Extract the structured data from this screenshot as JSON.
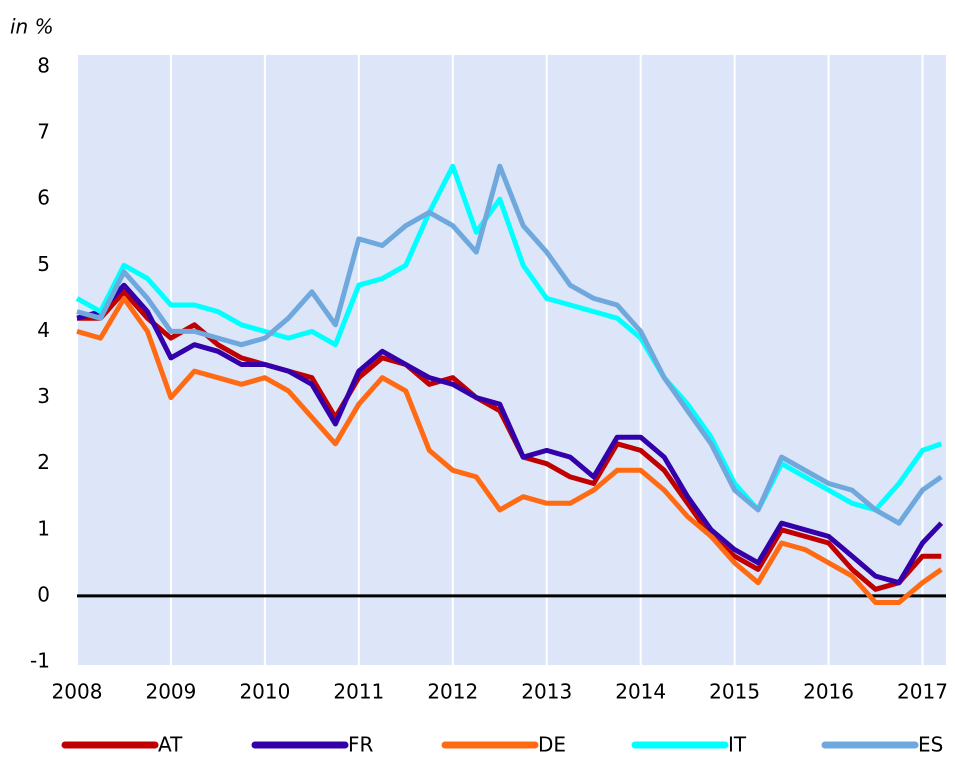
{
  "chart_data": {
    "type": "line",
    "y_label": "in %",
    "x": [
      2008,
      2008.25,
      2008.5,
      2008.75,
      2009,
      2009.25,
      2009.5,
      2009.75,
      2010,
      2010.25,
      2010.5,
      2010.75,
      2011,
      2011.25,
      2011.5,
      2011.75,
      2012,
      2012.25,
      2012.5,
      2012.75,
      2013,
      2013.25,
      2013.5,
      2013.75,
      2014,
      2014.25,
      2014.5,
      2014.75,
      2015,
      2015.25,
      2015.5,
      2015.75,
      2016,
      2016.25,
      2016.5,
      2016.75,
      2017,
      2017.2
    ],
    "series": [
      {
        "name": "AT",
        "color": "#c00000",
        "values": [
          4.2,
          4.2,
          4.6,
          4.2,
          3.9,
          4.1,
          3.8,
          3.6,
          3.5,
          3.4,
          3.3,
          2.7,
          3.3,
          3.6,
          3.5,
          3.2,
          3.3,
          3.0,
          2.8,
          2.1,
          2.0,
          1.8,
          1.7,
          2.3,
          2.2,
          1.9,
          1.4,
          0.9,
          0.6,
          0.4,
          1.0,
          0.9,
          0.8,
          0.4,
          0.1,
          0.2,
          0.6,
          0.6
        ]
      },
      {
        "name": "FR",
        "color": "#3300aa",
        "values": [
          4.2,
          4.3,
          4.7,
          4.3,
          3.6,
          3.8,
          3.7,
          3.5,
          3.5,
          3.4,
          3.2,
          2.6,
          3.4,
          3.7,
          3.5,
          3.3,
          3.2,
          3.0,
          2.9,
          2.1,
          2.2,
          2.1,
          1.8,
          2.4,
          2.4,
          2.1,
          1.5,
          1.0,
          0.7,
          0.5,
          1.1,
          1.0,
          0.9,
          0.6,
          0.3,
          0.2,
          0.8,
          1.1
        ]
      },
      {
        "name": "DE",
        "color": "#ff6a13",
        "values": [
          4.0,
          3.9,
          4.5,
          4.0,
          3.0,
          3.4,
          3.3,
          3.2,
          3.3,
          3.1,
          2.7,
          2.3,
          2.9,
          3.3,
          3.1,
          2.2,
          1.9,
          1.8,
          1.3,
          1.5,
          1.4,
          1.4,
          1.6,
          1.9,
          1.9,
          1.6,
          1.2,
          0.9,
          0.5,
          0.2,
          0.8,
          0.7,
          0.5,
          0.3,
          -0.1,
          -0.1,
          0.2,
          0.4
        ]
      },
      {
        "name": "IT",
        "color": "#00ffff",
        "values": [
          4.5,
          4.3,
          5.0,
          4.8,
          4.4,
          4.4,
          4.3,
          4.1,
          4.0,
          3.9,
          4.0,
          3.8,
          4.7,
          4.8,
          5.0,
          5.8,
          6.5,
          5.5,
          6.0,
          5.0,
          4.5,
          4.4,
          4.3,
          4.2,
          3.9,
          3.3,
          2.9,
          2.4,
          1.7,
          1.3,
          2.0,
          1.8,
          1.6,
          1.4,
          1.3,
          1.7,
          2.2,
          2.3
        ]
      },
      {
        "name": "ES",
        "color": "#6fa8dc",
        "values": [
          4.3,
          4.2,
          4.9,
          4.5,
          4.0,
          4.0,
          3.9,
          3.8,
          3.9,
          4.2,
          4.6,
          4.1,
          5.4,
          5.3,
          5.6,
          5.8,
          5.6,
          5.2,
          6.5,
          5.6,
          5.2,
          4.7,
          4.5,
          4.4,
          4.0,
          3.3,
          2.8,
          2.3,
          1.6,
          1.3,
          2.1,
          1.9,
          1.7,
          1.6,
          1.3,
          1.1,
          1.6,
          1.8
        ]
      }
    ],
    "xlim": [
      2008,
      2017.25
    ],
    "xticks": [
      2008,
      2009,
      2010,
      2011,
      2012,
      2013,
      2014,
      2015,
      2016,
      2017
    ],
    "ylim": [
      -1,
      8
    ],
    "yticks": [
      -1,
      0,
      1,
      2,
      3,
      4,
      5,
      6,
      7,
      8
    ],
    "grid": "x",
    "zero_line": true,
    "background": "#dce6f8",
    "legend": "bottom"
  }
}
